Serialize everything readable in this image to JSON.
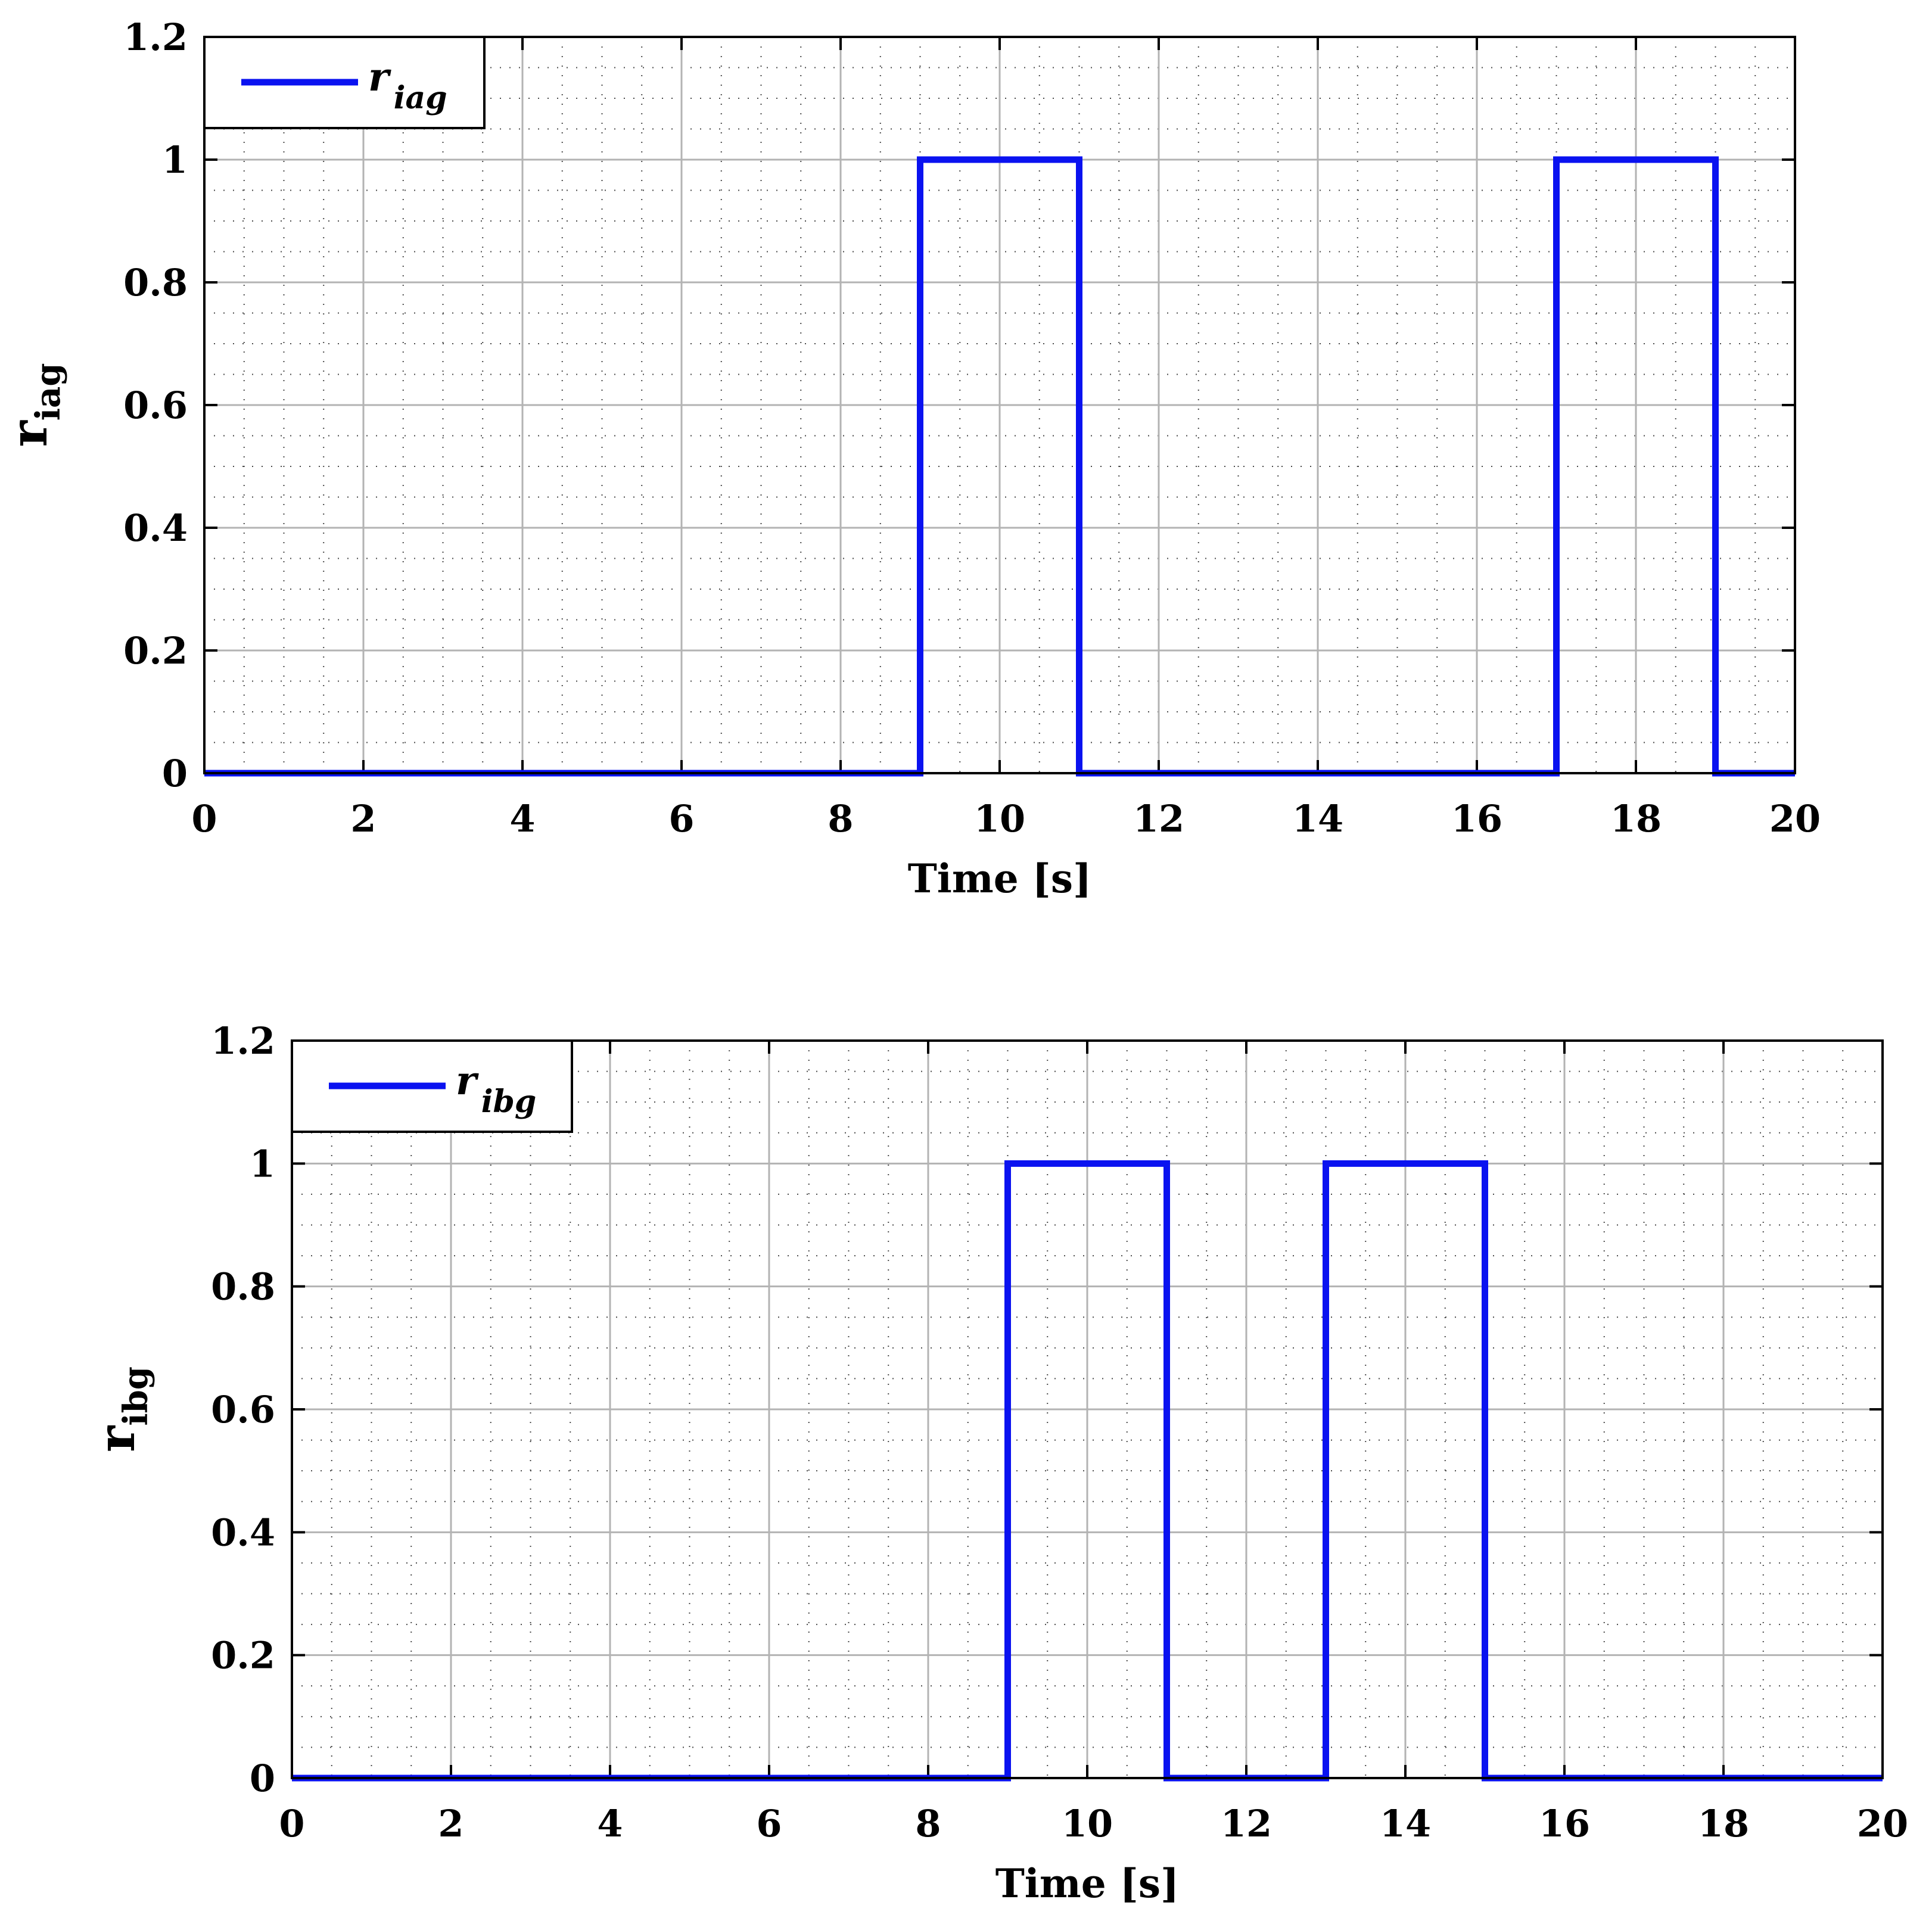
{
  "chart_data": [
    {
      "type": "line",
      "step": true,
      "xlabel": "Time [s]",
      "ylabel_main": "r",
      "ylabel_sub": "iag",
      "xlim": [
        0,
        20
      ],
      "ylim": [
        0,
        1.2
      ],
      "xticks": [
        "0",
        "2",
        "4",
        "6",
        "8",
        "10",
        "12",
        "14",
        "16",
        "18",
        "20"
      ],
      "yticks": [
        "0",
        "0.2",
        "0.4",
        "0.6",
        "0.8",
        "1",
        "1.2"
      ],
      "grid": true,
      "minor_grid": true,
      "legend_position": "top-left",
      "series": [
        {
          "name_main": "r",
          "name_sub": "iag",
          "color": "#0a12f0",
          "x": [
            0,
            9,
            9,
            11,
            11,
            17,
            17,
            19,
            19,
            20
          ],
          "y": [
            0,
            0,
            1,
            1,
            0,
            0,
            1,
            1,
            0,
            0
          ]
        }
      ]
    },
    {
      "type": "line",
      "step": true,
      "xlabel": "Time [s]",
      "ylabel_main": "r",
      "ylabel_sub": "ibg",
      "xlim": [
        0,
        20
      ],
      "ylim": [
        0,
        1.2
      ],
      "xticks": [
        "0",
        "2",
        "4",
        "6",
        "8",
        "10",
        "12",
        "14",
        "16",
        "18",
        "20"
      ],
      "yticks": [
        "0",
        "0.2",
        "0.4",
        "0.6",
        "0.8",
        "1",
        "1.2"
      ],
      "grid": true,
      "minor_grid": true,
      "legend_position": "top-left",
      "series": [
        {
          "name_main": "r",
          "name_sub": "ibg",
          "color": "#0a12f0",
          "x": [
            0,
            9,
            9,
            11,
            11,
            13,
            13,
            15,
            15,
            20
          ],
          "y": [
            0,
            0,
            1,
            1,
            0,
            0,
            1,
            1,
            0,
            0
          ]
        }
      ]
    }
  ]
}
